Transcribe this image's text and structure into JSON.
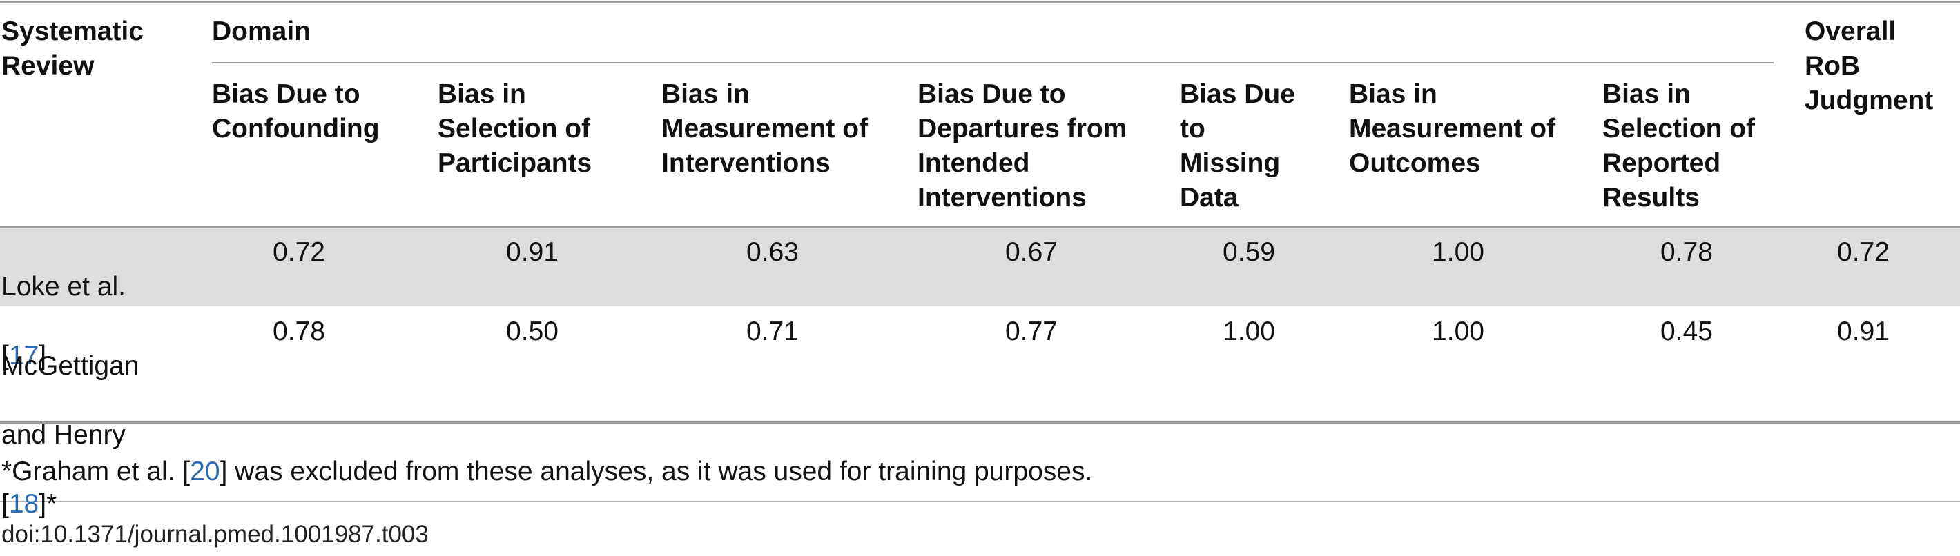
{
  "table": {
    "header": {
      "row_label": "Systematic\nReview",
      "group_label": "Domain",
      "overall_label": "Overall\nRoB\nJudgment",
      "columns": [
        "Bias Due to\nConfounding",
        "Bias in\nSelection of\nParticipants",
        "Bias in\nMeasurement of\nInterventions",
        "Bias Due to\nDepartures from\nIntended\nInterventions",
        "Bias Due\nto\nMissing\nData",
        "Bias in\nMeasurement of\nOutcomes",
        "Bias in\nSelection of\nReported\nResults"
      ]
    },
    "rows": [
      {
        "label_lines": [
          "Loke et al."
        ],
        "ref_open": "[",
        "ref": "17",
        "ref_close": "]",
        "values": [
          "0.72",
          "0.91",
          "0.63",
          "0.67",
          "0.59",
          "1.00",
          "0.78"
        ],
        "overall": "0.72"
      },
      {
        "label_lines": [
          "McGettigan",
          "and Henry"
        ],
        "ref_open": "[",
        "ref": "18",
        "ref_close": "]*",
        "values": [
          "0.78",
          "0.50",
          "0.71",
          "0.77",
          "1.00",
          "1.00",
          "0.45"
        ],
        "overall": "0.91"
      }
    ],
    "footnote": {
      "before": "*Graham et al. [",
      "ref": "20",
      "after": "] was excluded from these analyses, as it was used for training purposes."
    },
    "doi": "doi:10.1371/journal.pmed.1001987.t003"
  },
  "colors": {
    "link": "#2e6bb3",
    "band": "#dcdddf",
    "rule": "#9a9a9a"
  }
}
